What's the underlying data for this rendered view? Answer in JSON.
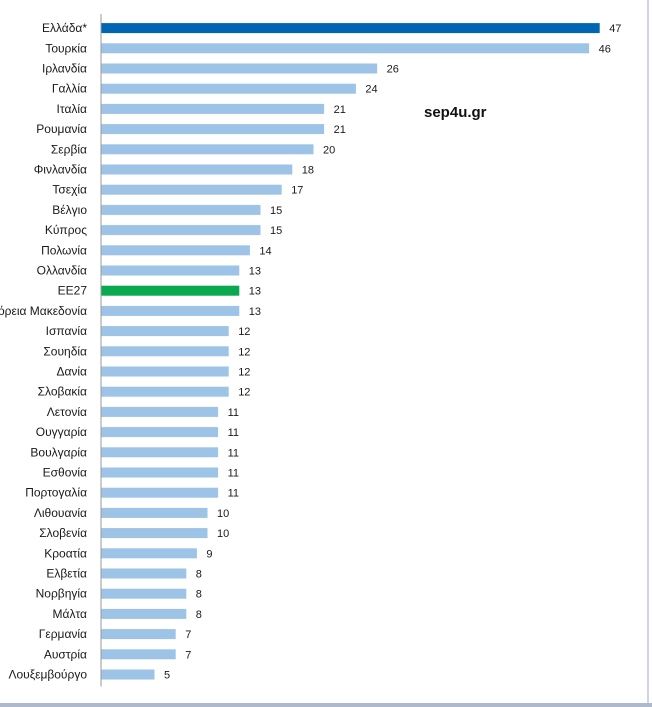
{
  "watermark": "sep4u.gr",
  "colors": {
    "highlight": "#0066B3",
    "eu_average": "#0AA84F",
    "default_bar": "#9DC3E6",
    "axis": "#9a9a9a"
  },
  "chart_data": {
    "type": "bar",
    "orientation": "horizontal",
    "title": "",
    "xlabel": "",
    "ylabel": "",
    "xlim": [
      0,
      50
    ],
    "grid": false,
    "categories": [
      "Ελλάδα*",
      "Τουρκία",
      "Ιρλανδία",
      "Γαλλία",
      "Ιταλία",
      "Ρουμανία",
      "Σερβία",
      "Φινλανδία",
      "Τσεχία",
      "Βέλγιο",
      "Κύπρος",
      "Πολωνία",
      "Ολλανδία",
      "ΕΕ27",
      "Βόρεια Μακεδονία",
      "Ισπανία",
      "Σουηδία",
      "Δανία",
      "Σλοβακία",
      "Λετονία",
      "Ουγγαρία",
      "Βουλγαρία",
      "Εσθονία",
      "Πορτογαλία",
      "Λιθουανία",
      "Σλοβενία",
      "Κροατία",
      "Ελβετία",
      "Νορβηγία",
      "Μάλτα",
      "Γερμανία",
      "Αυστρία",
      "Λουξεμβούργο"
    ],
    "values": [
      47,
      46,
      26,
      24,
      21,
      21,
      20,
      18,
      17,
      15,
      15,
      14,
      13,
      13,
      13,
      12,
      12,
      12,
      12,
      11,
      11,
      11,
      11,
      11,
      10,
      10,
      9,
      8,
      8,
      8,
      7,
      7,
      5
    ],
    "highlighted": {
      "Ελλάδα*": "highlight",
      "ΕΕ27": "eu_average"
    }
  }
}
